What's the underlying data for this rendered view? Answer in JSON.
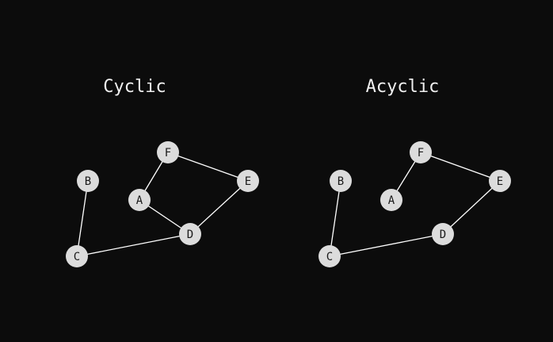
{
  "colors": {
    "background": "#0c0c0c",
    "title": "#f0f0f0",
    "edge": "#ffffff",
    "node_fill": "#dcdcdc",
    "node_text": "#1a1a1a"
  },
  "graphs": [
    {
      "id": "cyclic",
      "title": "Cyclic",
      "nodes": [
        "A",
        "B",
        "C",
        "D",
        "E",
        "F"
      ],
      "edges": [
        [
          "F",
          "A"
        ],
        [
          "F",
          "E"
        ],
        [
          "A",
          "D"
        ],
        [
          "E",
          "D"
        ],
        [
          "D",
          "C"
        ],
        [
          "B",
          "C"
        ]
      ]
    },
    {
      "id": "acyclic",
      "title": "Acyclic",
      "nodes": [
        "A",
        "B",
        "C",
        "D",
        "E",
        "F"
      ],
      "edges": [
        [
          "F",
          "A"
        ],
        [
          "F",
          "E"
        ],
        [
          "E",
          "D"
        ],
        [
          "D",
          "C"
        ],
        [
          "B",
          "C"
        ]
      ]
    }
  ]
}
